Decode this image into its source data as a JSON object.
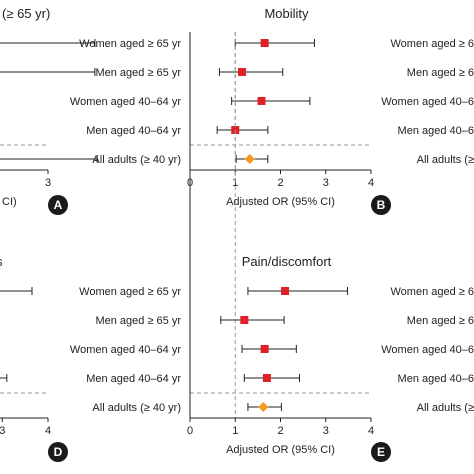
{
  "colors": {
    "subgroup_marker": "#e0202a",
    "overall_marker": "#f39a1d",
    "line": "#222222",
    "ref_line": "#9a9a9a",
    "badge": "#1a1a1a"
  },
  "chart_data": [
    {
      "id": "A",
      "type": "forest",
      "clipped": true,
      "title": "(≥ 65 yr)",
      "xlabel": "CI)",
      "xlim": [
        0,
        3
      ],
      "xticks": [
        3
      ],
      "rows": [
        {
          "label": "",
          "or": null,
          "lo": null,
          "hi": 4.05,
          "overall": false
        },
        {
          "label": "",
          "or": null,
          "lo": null,
          "hi": 4.05,
          "overall": false
        },
        {
          "label": "",
          "or": null,
          "lo": null,
          "hi": null,
          "overall": false
        },
        {
          "label": "",
          "or": null,
          "lo": null,
          "hi": null,
          "overall": false
        },
        {
          "label": "",
          "or": null,
          "lo": null,
          "hi": 4.1,
          "overall": true
        }
      ]
    },
    {
      "id": "B",
      "type": "forest",
      "title": "Mobility",
      "xlabel": "Adjusted OR (95% CI)",
      "xlim": [
        0,
        4
      ],
      "xticks": [
        0,
        1,
        2,
        3,
        4
      ],
      "ref_x": 1,
      "rows": [
        {
          "label": "Women aged ≥ 65 yr",
          "or": 1.65,
          "lo": 1.0,
          "hi": 2.75,
          "overall": false
        },
        {
          "label": "Men aged ≥ 65 yr",
          "or": 1.15,
          "lo": 0.65,
          "hi": 2.05,
          "overall": false
        },
        {
          "label": "Women aged 40–64 yr",
          "or": 1.58,
          "lo": 0.92,
          "hi": 2.65,
          "overall": false
        },
        {
          "label": "Men aged 40–64 yr",
          "or": 1.0,
          "lo": 0.6,
          "hi": 1.72,
          "overall": false
        },
        {
          "label": "All adults (≥ 40 yr)",
          "or": 1.32,
          "lo": 1.02,
          "hi": 1.72,
          "overall": true
        }
      ]
    },
    {
      "id": "C",
      "type": "forest",
      "clipped": true,
      "title": "",
      "xlabel": "",
      "xlim": [
        0,
        4
      ],
      "xticks": [],
      "rows": [
        {
          "label": "Women aged ≥ 6",
          "overall": false
        },
        {
          "label": "Men aged ≥ 6",
          "overall": false
        },
        {
          "label": "Women aged 40–6",
          "overall": false
        },
        {
          "label": "Men aged 40–6",
          "overall": false
        },
        {
          "label": "All adults (≥",
          "overall": true
        }
      ]
    },
    {
      "id": "D",
      "type": "forest",
      "clipped": true,
      "title": "s",
      "xlabel": "",
      "xlim": [
        0,
        4
      ],
      "xticks": [
        3,
        4
      ],
      "rows": [
        {
          "label": "",
          "hi": 3.65,
          "overall": false
        },
        {
          "label": "",
          "hi": null,
          "overall": false
        },
        {
          "label": "",
          "hi": null,
          "overall": false
        },
        {
          "label": "",
          "hi": 3.1,
          "overall": false
        },
        {
          "label": "",
          "hi": null,
          "overall": true
        }
      ]
    },
    {
      "id": "E",
      "type": "forest",
      "title": "Pain/discomfort",
      "xlabel": "Adjusted OR (95% CI)",
      "xlim": [
        0,
        4
      ],
      "xticks": [
        0,
        1,
        2,
        3,
        4
      ],
      "ref_x": 1,
      "rows": [
        {
          "label": "Women aged ≥ 65 yr",
          "or": 2.1,
          "lo": 1.28,
          "hi": 3.48,
          "overall": false
        },
        {
          "label": "Men aged ≥ 65 yr",
          "or": 1.2,
          "lo": 0.68,
          "hi": 2.08,
          "overall": false
        },
        {
          "label": "Women aged 40–64 yr",
          "or": 1.65,
          "lo": 1.15,
          "hi": 2.35,
          "overall": false
        },
        {
          "label": "Men aged 40–64 yr",
          "or": 1.7,
          "lo": 1.2,
          "hi": 2.42,
          "overall": false
        },
        {
          "label": "All adults (≥ 40 yr)",
          "or": 1.62,
          "lo": 1.28,
          "hi": 2.02,
          "overall": true
        }
      ]
    },
    {
      "id": "F",
      "type": "forest",
      "clipped": true,
      "title": "",
      "xlabel": "",
      "xlim": [
        0,
        4
      ],
      "xticks": [],
      "rows": [
        {
          "label": "Women aged ≥ 6",
          "overall": false
        },
        {
          "label": "Men aged ≥ 6",
          "overall": false
        },
        {
          "label": "Women aged 40–6",
          "overall": false
        },
        {
          "label": "Men aged 40–6",
          "overall": false
        },
        {
          "label": "All adults (≥",
          "overall": true
        }
      ]
    }
  ]
}
